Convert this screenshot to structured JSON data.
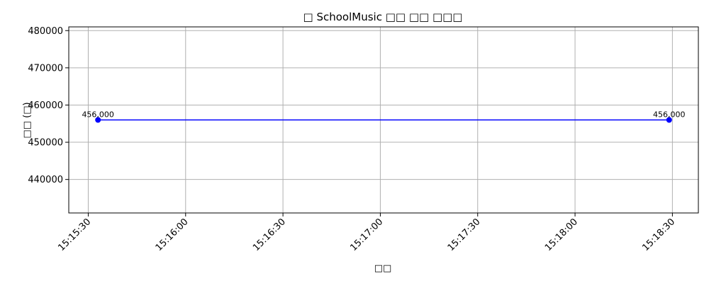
{
  "chart_data": {
    "type": "line",
    "title": "□ SchoolMusic □□ □□ □□□",
    "xlabel": "□□",
    "ylabel": "□□ (□)",
    "x_times": [
      "15:15:33",
      "15:18:29"
    ],
    "series": [
      {
        "values": [
          456000,
          456000
        ],
        "color": "#0000ff",
        "marker": "circle"
      }
    ],
    "data_labels": [
      "456,000",
      "456,000"
    ],
    "xticks": [
      "15:15:30",
      "15:16:00",
      "15:16:30",
      "15:17:00",
      "15:17:30",
      "15:18:00",
      "15:18:30"
    ],
    "xlim": [
      "15:15:24",
      "15:18:38"
    ],
    "yticks": [
      440000,
      450000,
      460000,
      470000,
      480000
    ],
    "ylim": [
      431000,
      481000
    ],
    "grid": true,
    "x_tick_rotation": 45,
    "grid_color": "#b0b0b0"
  }
}
